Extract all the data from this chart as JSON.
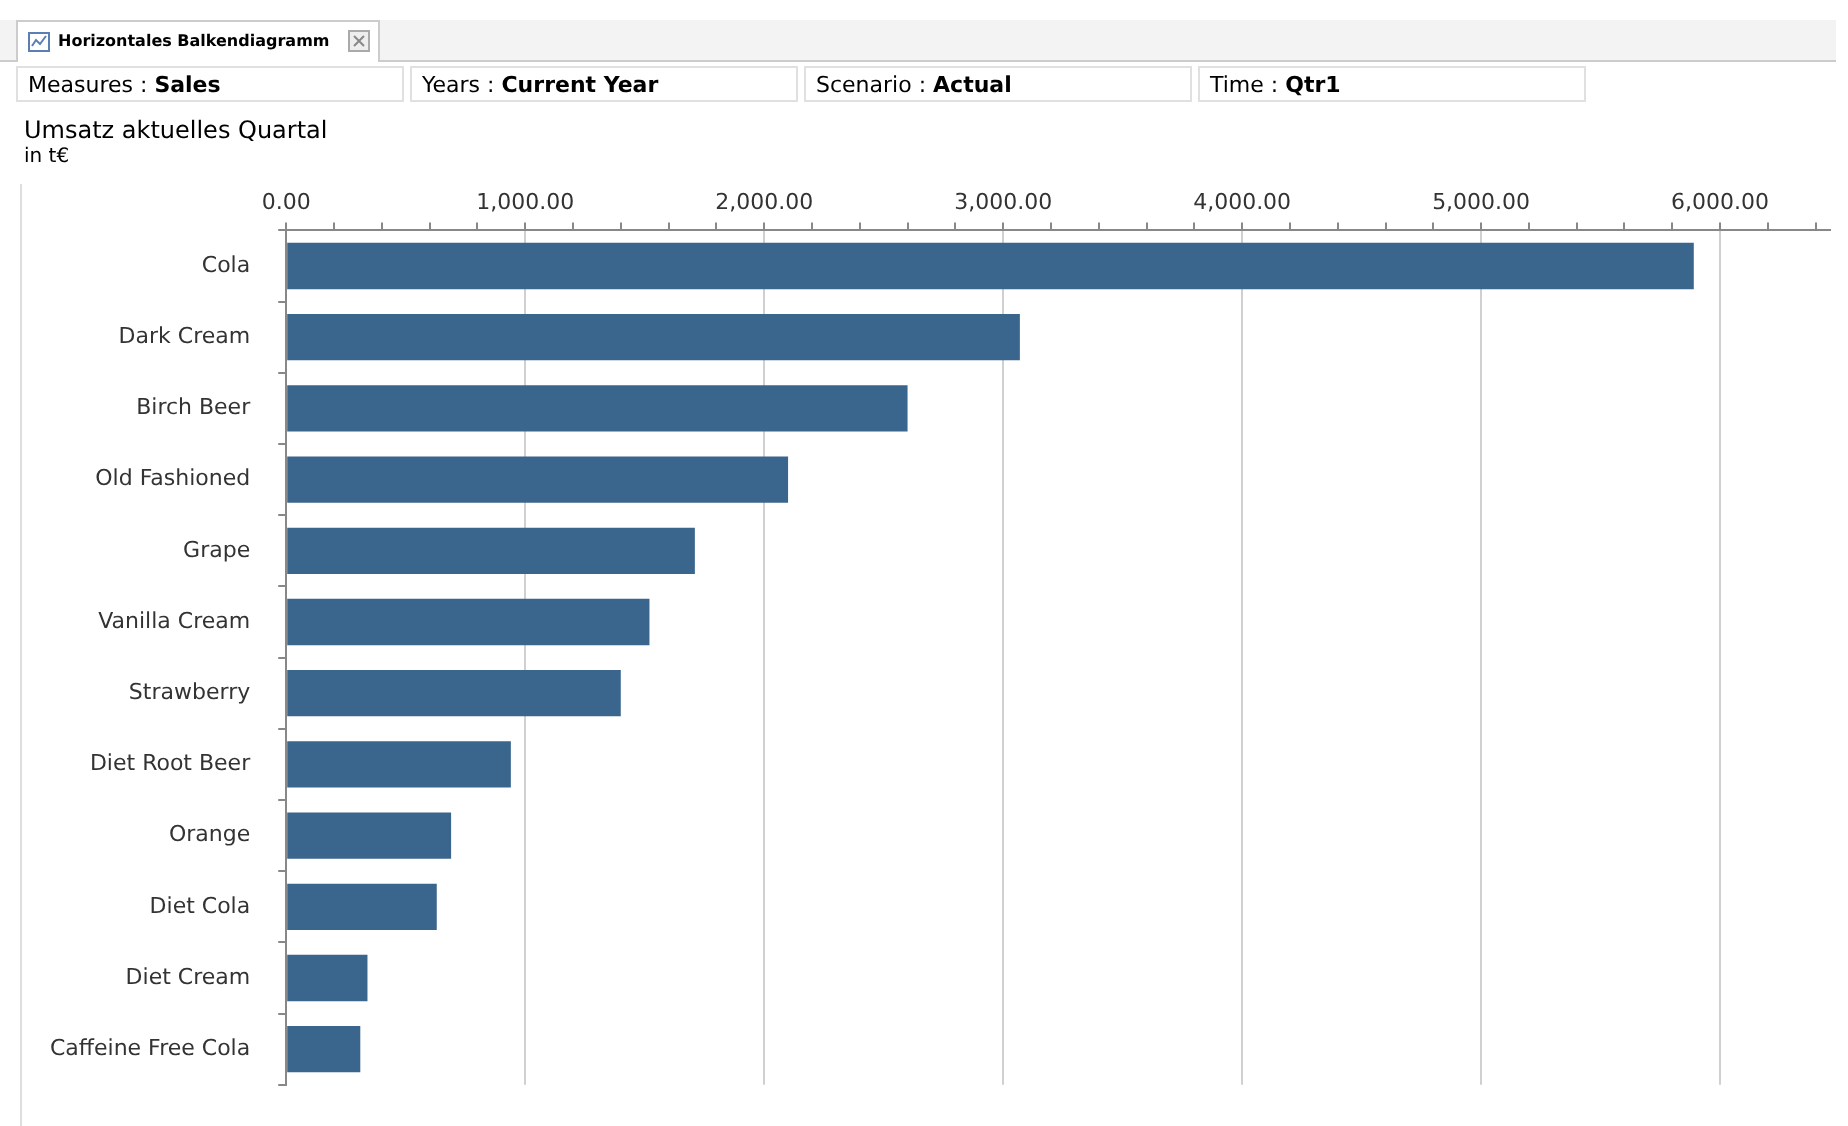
{
  "chart_data": {
    "type": "bar",
    "orientation": "horizontal",
    "title": "Umsatz aktuelles Quartal",
    "subtitle": "in t€",
    "annotations": [
      "Horizontales Balkendiagramm",
      "Measures : Sales",
      "Years : Current Year",
      "Scenario : Actual",
      "Time : Qtr1"
    ],
    "categories": [
      "Cola",
      "Dark Cream",
      "Birch Beer",
      "Old Fashioned",
      "Grape",
      "Vanilla Cream",
      "Strawberry",
      "Diet Root Beer",
      "Orange",
      "Diet Cola",
      "Diet Cream",
      "Caffeine Free Cola"
    ],
    "values": [
      5890,
      3070,
      2600,
      2100,
      1710,
      1520,
      1400,
      940,
      690,
      630,
      340,
      310
    ],
    "color": "#3a658c",
    "xlim": [
      0,
      6460
    ],
    "xticks": [
      {
        "value": 0,
        "label": "0.00"
      },
      {
        "value": 200,
        "label": null
      },
      {
        "value": 400,
        "label": null
      },
      {
        "value": 600,
        "label": null
      },
      {
        "value": 800,
        "label": null
      },
      {
        "value": 1000,
        "label": "1,000.00"
      },
      {
        "value": 1200,
        "label": null
      },
      {
        "value": 1400,
        "label": null
      },
      {
        "value": 1600,
        "label": null
      },
      {
        "value": 1800,
        "label": null
      },
      {
        "value": 2000,
        "label": "2,000.00"
      },
      {
        "value": 2200,
        "label": null
      },
      {
        "value": 2400,
        "label": null
      },
      {
        "value": 2600,
        "label": null
      },
      {
        "value": 2800,
        "label": null
      },
      {
        "value": 3000,
        "label": "3,000.00"
      },
      {
        "value": 3200,
        "label": null
      },
      {
        "value": 3400,
        "label": null
      },
      {
        "value": 3600,
        "label": null
      },
      {
        "value": 3800,
        "label": null
      },
      {
        "value": 4000,
        "label": "4,000.00"
      },
      {
        "value": 4200,
        "label": null
      },
      {
        "value": 4400,
        "label": null
      },
      {
        "value": 4600,
        "label": null
      },
      {
        "value": 4800,
        "label": null
      },
      {
        "value": 5000,
        "label": "5,000.00"
      },
      {
        "value": 5200,
        "label": null
      },
      {
        "value": 5400,
        "label": null
      },
      {
        "value": 5600,
        "label": null
      },
      {
        "value": 5800,
        "label": null
      },
      {
        "value": 6000,
        "label": "6,000.00"
      },
      {
        "value": 6200,
        "label": null
      },
      {
        "value": 6400,
        "label": null
      }
    ],
    "grid": "x"
  }
}
